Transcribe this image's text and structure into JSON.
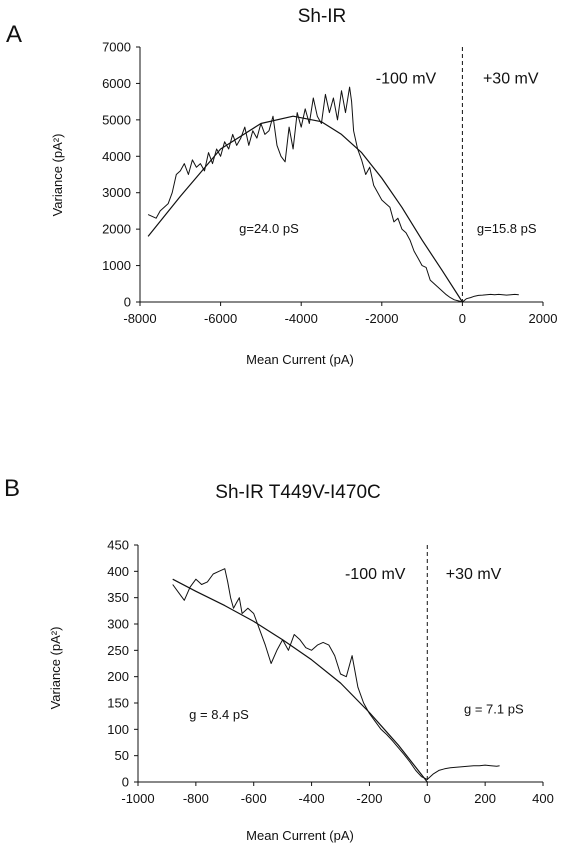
{
  "chart_data": [
    {
      "type": "scatter",
      "panel_label": "A",
      "title": "Sh-IR",
      "xlabel": "Mean Current (pA)",
      "ylabel": "Variance (pA²)",
      "xlim": [
        -8000,
        2000
      ],
      "ylim": [
        0,
        7000
      ],
      "xticks": [
        -8000,
        -6000,
        -4000,
        -2000,
        0,
        2000
      ],
      "yticks": [
        0,
        1000,
        2000,
        3000,
        4000,
        5000,
        6000,
        7000
      ],
      "grid": false,
      "annotations": [
        {
          "text": "-100 mV",
          "x": -1400,
          "y": 6000
        },
        {
          "text": "+30 mV",
          "x": 1200,
          "y": 6000
        },
        {
          "text": "g=24.0 pS",
          "x": -4800,
          "y": 1900
        },
        {
          "text": "g=15.8 pS",
          "x": 1100,
          "y": 1900
        }
      ],
      "vline_x": 0,
      "series": [
        {
          "kind": "data",
          "x": [
            -7800,
            -7600,
            -7500,
            -7300,
            -7200,
            -7100,
            -7000,
            -6900,
            -6800,
            -6700,
            -6600,
            -6500,
            -6400,
            -6300,
            -6200,
            -6100,
            -6000,
            -5900,
            -5800,
            -5700,
            -5600,
            -5500,
            -5400,
            -5300,
            -5200,
            -5100,
            -5000,
            -4900,
            -4800,
            -4700,
            -4600,
            -4500,
            -4400,
            -4300,
            -4200,
            -4100,
            -4000,
            -3900,
            -3800,
            -3700,
            -3600,
            -3500,
            -3400,
            -3300,
            -3200,
            -3100,
            -3000,
            -2900,
            -2800,
            -2750,
            -2700,
            -2600,
            -2500,
            -2400,
            -2300,
            -2200,
            -2100,
            -2000,
            -1900,
            -1800,
            -1700,
            -1600,
            -1500,
            -1400,
            -1300,
            -1200,
            -1100,
            -1000,
            -900,
            -800,
            -700,
            -600,
            -500,
            -400,
            -300,
            -200,
            -100,
            0,
            100,
            200,
            300,
            400,
            500,
            600,
            700,
            800,
            900,
            1000,
            1100,
            1200,
            1300,
            1400
          ],
          "y": [
            2400,
            2300,
            2500,
            2700,
            3000,
            3500,
            3600,
            3800,
            3500,
            3900,
            3700,
            3800,
            3600,
            4100,
            3800,
            4200,
            4000,
            4400,
            4200,
            4600,
            4300,
            4500,
            4800,
            4300,
            4700,
            4500,
            4900,
            4600,
            4700,
            5100,
            4300,
            4000,
            3850,
            4800,
            4200,
            5200,
            4800,
            5300,
            4900,
            5600,
            5100,
            4900,
            5700,
            5200,
            5600,
            5000,
            5800,
            5200,
            5900,
            5500,
            4700,
            4200,
            3900,
            3500,
            3700,
            3200,
            3000,
            2800,
            2700,
            2600,
            2200,
            2300,
            2000,
            1900,
            1700,
            1400,
            1200,
            1000,
            950,
            600,
            500,
            400,
            300,
            200,
            120,
            60,
            30,
            0,
            90,
            120,
            160,
            180,
            190,
            200,
            210,
            200,
            210,
            200,
            190,
            200,
            210,
            200
          ]
        },
        {
          "kind": "fit",
          "x": [
            -7800,
            -7000,
            -6000,
            -5000,
            -4200,
            -3500,
            -3000,
            -2500,
            -2000,
            -1500,
            -1000,
            -500,
            0
          ],
          "y": [
            1800,
            2900,
            4200,
            4900,
            5100,
            4950,
            4600,
            4100,
            3400,
            2600,
            1700,
            860,
            0
          ]
        }
      ]
    },
    {
      "type": "scatter",
      "panel_label": "B",
      "title": "Sh-IR T449V-I470C",
      "xlabel": "Mean Current (pA)",
      "ylabel": "Variance (pA²)",
      "xlim": [
        -1000,
        400
      ],
      "ylim": [
        0,
        450
      ],
      "xticks": [
        -1000,
        -800,
        -600,
        -400,
        -200,
        0,
        200,
        400
      ],
      "yticks": [
        0,
        50,
        100,
        150,
        200,
        250,
        300,
        350,
        400,
        450
      ],
      "grid": false,
      "annotations": [
        {
          "text": "-100 mV",
          "x": -180,
          "y": 385
        },
        {
          "text": "+30 mV",
          "x": 160,
          "y": 385
        },
        {
          "text": "g = 8.4 pS",
          "x": -720,
          "y": 120
        },
        {
          "text": "g = 7.1 pS",
          "x": 230,
          "y": 130
        }
      ],
      "vline_x": 0,
      "series": [
        {
          "kind": "data",
          "x": [
            -880,
            -860,
            -840,
            -820,
            -800,
            -790,
            -780,
            -760,
            -740,
            -720,
            -700,
            -690,
            -680,
            -670,
            -660,
            -650,
            -640,
            -620,
            -600,
            -580,
            -560,
            -540,
            -520,
            -500,
            -480,
            -460,
            -440,
            -420,
            -400,
            -380,
            -360,
            -340,
            -320,
            -300,
            -280,
            -260,
            -240,
            -220,
            -200,
            -180,
            -160,
            -140,
            -120,
            -100,
            -80,
            -60,
            -40,
            -20,
            0,
            20,
            40,
            60,
            80,
            100,
            120,
            140,
            160,
            180,
            200,
            220,
            240,
            250
          ],
          "y": [
            375,
            360,
            345,
            370,
            385,
            380,
            375,
            380,
            395,
            400,
            405,
            380,
            350,
            330,
            340,
            350,
            320,
            330,
            320,
            290,
            260,
            225,
            250,
            270,
            250,
            280,
            270,
            255,
            250,
            260,
            265,
            260,
            240,
            205,
            200,
            240,
            180,
            150,
            130,
            115,
            100,
            90,
            78,
            65,
            52,
            38,
            22,
            10,
            5,
            15,
            22,
            25,
            27,
            28,
            29,
            30,
            31,
            31,
            32,
            31,
            30,
            31
          ]
        },
        {
          "kind": "fit",
          "x": [
            -880,
            -800,
            -700,
            -600,
            -500,
            -400,
            -300,
            -200,
            -100,
            0
          ],
          "y": [
            385,
            362,
            335,
            305,
            270,
            232,
            188,
            132,
            70,
            0
          ]
        }
      ]
    }
  ]
}
